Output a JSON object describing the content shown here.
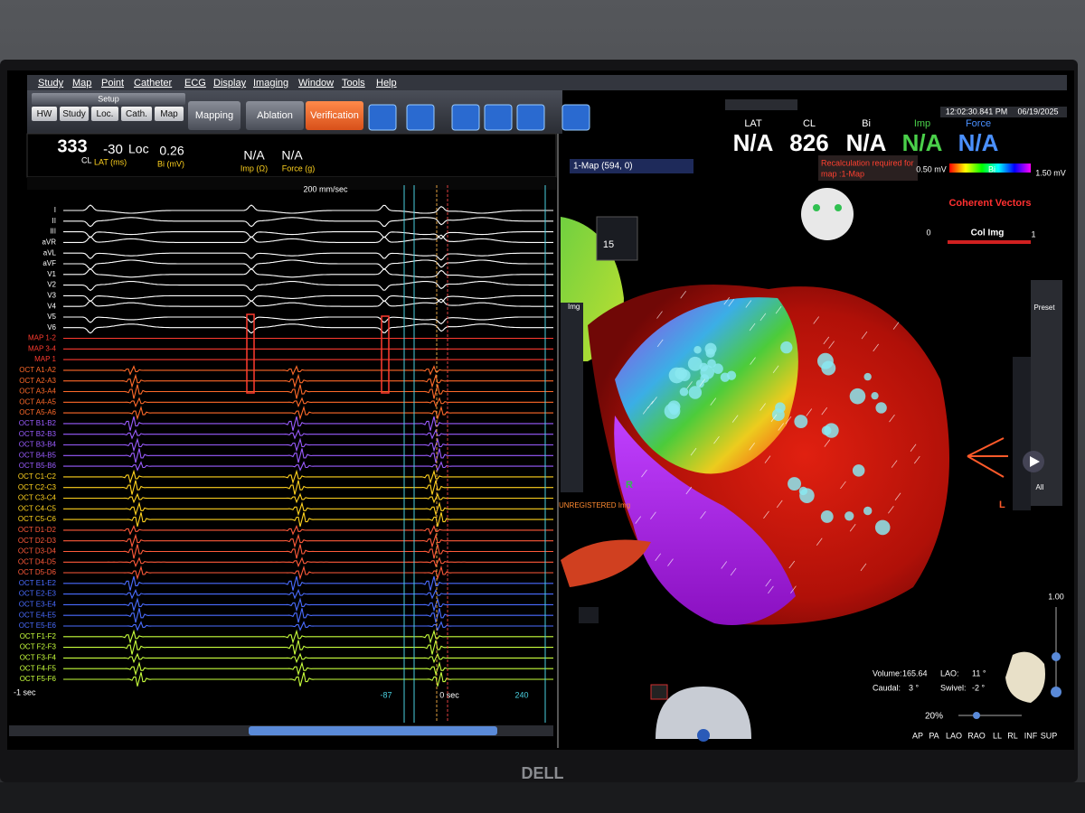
{
  "menu": [
    "Study",
    "Map",
    "Point",
    "Catheter",
    "ECG",
    "Display",
    "Imaging",
    "Window",
    "Tools",
    "Help"
  ],
  "toolbar": {
    "setup": "Setup",
    "setup_buttons": [
      "HW",
      "Study",
      "Loc.",
      "Cath.",
      "Map"
    ],
    "modes": [
      "Mapping",
      "Ablation",
      "Verification"
    ]
  },
  "status": {
    "cl": "333",
    "cl_label": "CL",
    "lat": "-30",
    "lat_label": "LAT (ms)",
    "loc": "Loc",
    "bi": "0.26",
    "bi_label": "Bi (mV)",
    "imp": "N/A",
    "imp_label": "Imp (Ω)",
    "force": "N/A",
    "force_label": "Force (g)"
  },
  "ecg": {
    "speed": "200 mm/sec",
    "channels": [
      {
        "label": "I",
        "color": "#ffffff"
      },
      {
        "label": "II",
        "color": "#ffffff"
      },
      {
        "label": "III",
        "color": "#ffffff"
      },
      {
        "label": "aVR",
        "color": "#ffffff"
      },
      {
        "label": "aVL",
        "color": "#ffffff"
      },
      {
        "label": "aVF",
        "color": "#ffffff"
      },
      {
        "label": "V1",
        "color": "#ffffff"
      },
      {
        "label": "V2",
        "color": "#ffffff"
      },
      {
        "label": "V3",
        "color": "#ffffff"
      },
      {
        "label": "V4",
        "color": "#ffffff"
      },
      {
        "label": "V5",
        "color": "#ffffff"
      },
      {
        "label": "V6",
        "color": "#ffffff"
      },
      {
        "label": "MAP 1-2",
        "color": "#ff3b2f"
      },
      {
        "label": "MAP 3-4",
        "color": "#ff3b2f"
      },
      {
        "label": "MAP 1",
        "color": "#ff3b2f"
      },
      {
        "label": "OCT A1-A2",
        "color": "#ff6a2a"
      },
      {
        "label": "OCT A2-A3",
        "color": "#ff6a2a"
      },
      {
        "label": "OCT A3-A4",
        "color": "#ff6a2a"
      },
      {
        "label": "OCT A4-A5",
        "color": "#ff6a2a"
      },
      {
        "label": "OCT A5-A6",
        "color": "#ff6a2a"
      },
      {
        "label": "OCT B1-B2",
        "color": "#9a5cff"
      },
      {
        "label": "OCT B2-B3",
        "color": "#9a5cff"
      },
      {
        "label": "OCT B3-B4",
        "color": "#9a5cff"
      },
      {
        "label": "OCT B4-B5",
        "color": "#9a5cff"
      },
      {
        "label": "OCT B5-B6",
        "color": "#9a5cff"
      },
      {
        "label": "OCT C1-C2",
        "color": "#ffd21e"
      },
      {
        "label": "OCT C2-C3",
        "color": "#ffd21e"
      },
      {
        "label": "OCT C3-C4",
        "color": "#ffd21e"
      },
      {
        "label": "OCT C4-C5",
        "color": "#ffd21e"
      },
      {
        "label": "OCT C5-C6",
        "color": "#ffd21e"
      },
      {
        "label": "OCT D1-D2",
        "color": "#ff5a3a"
      },
      {
        "label": "OCT D2-D3",
        "color": "#ff5a3a"
      },
      {
        "label": "OCT D3-D4",
        "color": "#ff5a3a"
      },
      {
        "label": "OCT D4-D5",
        "color": "#ff5a3a"
      },
      {
        "label": "OCT D5-D6",
        "color": "#ff5a3a"
      },
      {
        "label": "OCT E1-E2",
        "color": "#4a6cff"
      },
      {
        "label": "OCT E2-E3",
        "color": "#4a6cff"
      },
      {
        "label": "OCT E3-E4",
        "color": "#4a6cff"
      },
      {
        "label": "OCT E4-E5",
        "color": "#4a6cff"
      },
      {
        "label": "OCT E5-E6",
        "color": "#4a6cff"
      },
      {
        "label": "OCT F1-F2",
        "color": "#c8ff3c"
      },
      {
        "label": "OCT F2-F3",
        "color": "#c8ff3c"
      },
      {
        "label": "OCT F3-F4",
        "color": "#c8ff3c"
      },
      {
        "label": "OCT F4-F5",
        "color": "#c8ff3c"
      },
      {
        "label": "OCT F5-F6",
        "color": "#c8ff3c"
      }
    ],
    "time_start": "-1 sec",
    "markers": [
      "-87",
      "0 sec",
      "240"
    ]
  },
  "header": {
    "time": "12:02:30.841 PM",
    "date": "06/19/2025",
    "readouts": [
      {
        "label": "LAT",
        "value": "N/A",
        "color": "#ffffff"
      },
      {
        "label": "CL",
        "value": "826",
        "color": "#ffffff"
      },
      {
        "label": "Bi",
        "value": "N/A",
        "color": "#ffffff"
      },
      {
        "label": "Imp",
        "value": "N/A",
        "color": "#4ad04a"
      },
      {
        "label": "Force",
        "value": "N/A",
        "color": "#4a90ff"
      }
    ],
    "warning": [
      "Recalculation required for",
      "map :1-Map"
    ]
  },
  "map": {
    "name": "1-Map (594, 0)",
    "scale_min": "0.50 mV",
    "scale_label": "Bi",
    "scale_max": "1.50 mV",
    "vectors_title": "Coherent Vectors",
    "vectors_min": "0",
    "vectors_label": "Col Img",
    "vectors_max": "1",
    "point_count": "15",
    "img_label": "Img",
    "unregistered": "UNREGISTERED Img",
    "right_marker": "R",
    "left_marker": "L",
    "preset": "Preset",
    "all": "All",
    "zoom_max": "1.00",
    "zoom": "20%",
    "orientation": [
      {
        "label": "Volume:",
        "value": "165.64"
      },
      {
        "label": "LAO:",
        "value": "11 °"
      },
      {
        "label": "Caudal:",
        "value": "3 °"
      },
      {
        "label": "Swivel:",
        "value": "-2 °"
      }
    ],
    "views": [
      "AP",
      "PA",
      "LAO",
      "RAO",
      "LL",
      "RL",
      "INF",
      "SUP"
    ]
  },
  "brand": "DELL"
}
